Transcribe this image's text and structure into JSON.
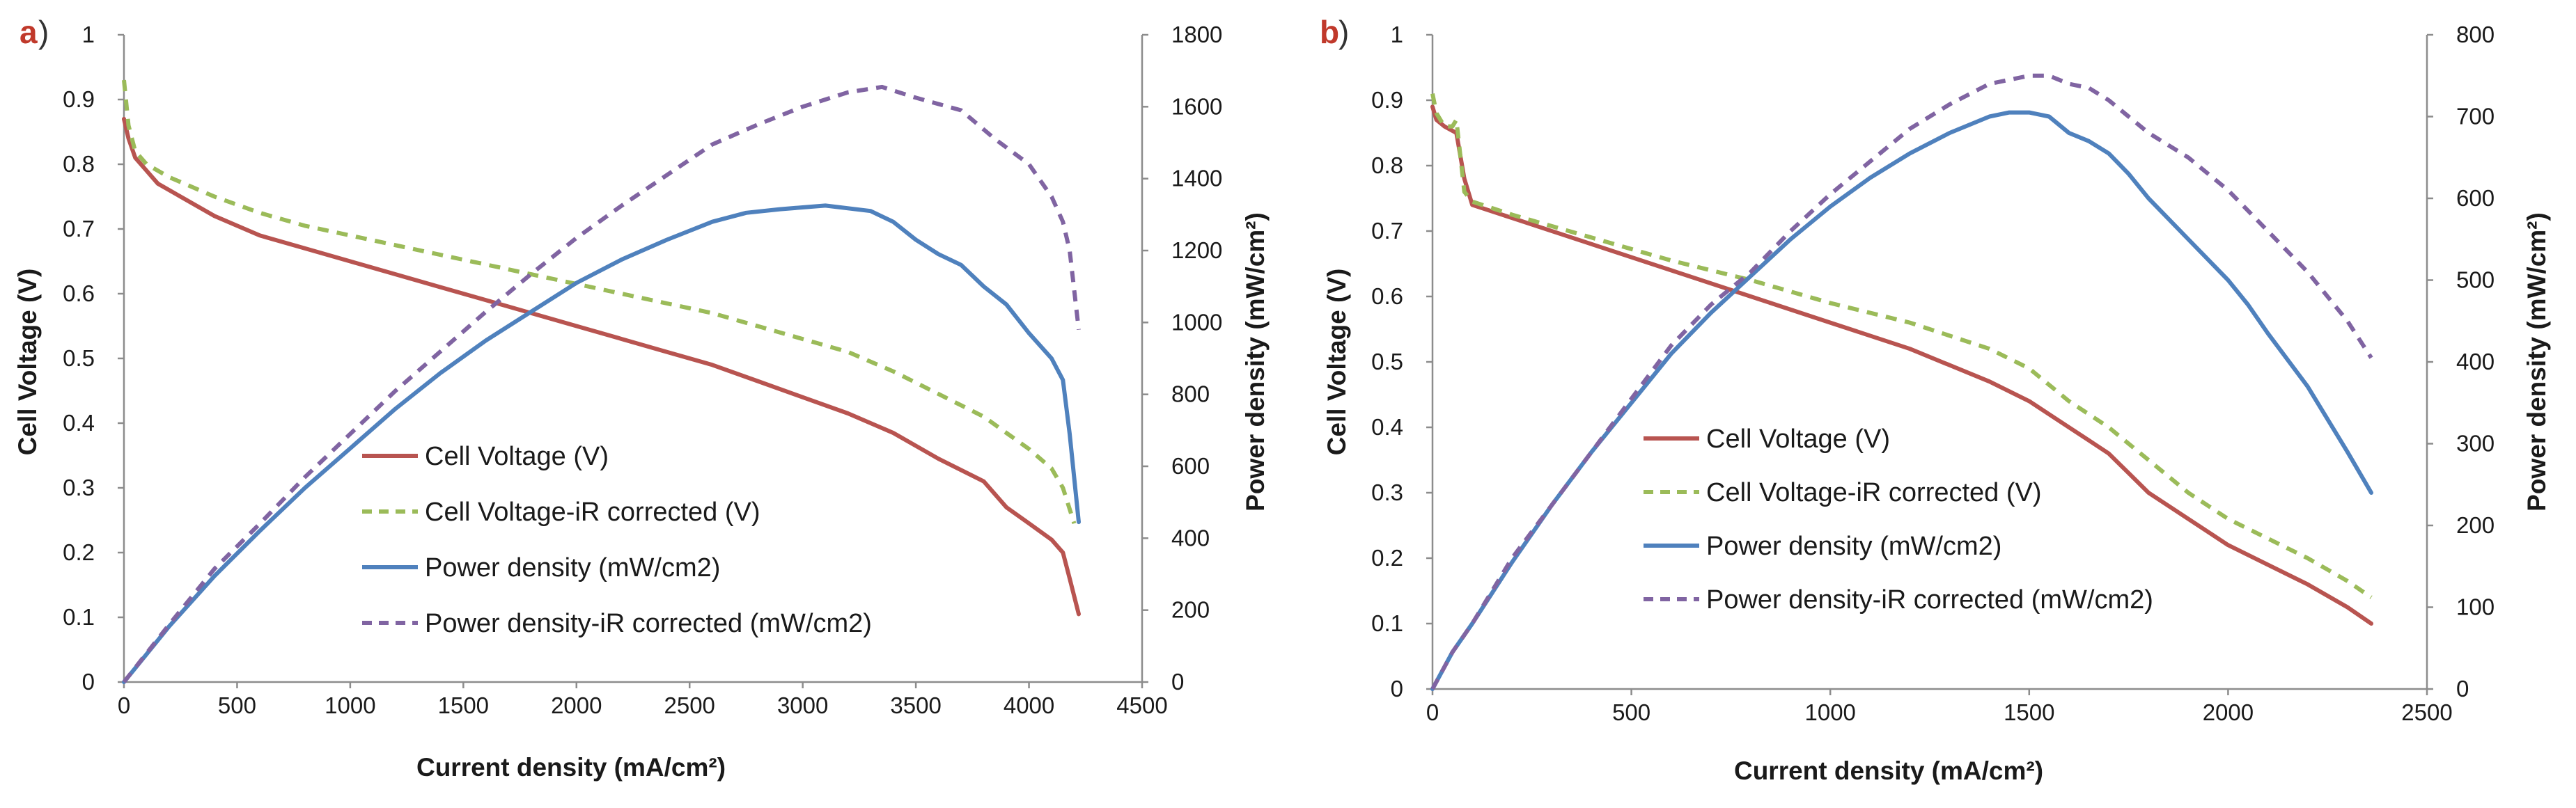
{
  "colors": {
    "cell_voltage": "#b85450",
    "cell_voltage_ir": "#9bbb59",
    "power_density": "#4f81bd",
    "power_density_ir": "#8064a2"
  },
  "chart_data": [
    {
      "type": "line",
      "panel_letter": "a",
      "panel_paren": ")",
      "xlabel": "Current density (mA/cm²)",
      "ylabel": "Cell Voltage (V)",
      "y2label": "Power density (mW/cm²)",
      "xlim": [
        0,
        4500
      ],
      "ylim": [
        0,
        1
      ],
      "y2lim": [
        0,
        1800
      ],
      "x_ticks": [
        "0",
        "500",
        "1000",
        "1500",
        "2000",
        "2500",
        "3000",
        "3500",
        "4000",
        "4500"
      ],
      "y_ticks": [
        "0",
        "0.1",
        "0.2",
        "0.3",
        "0.4",
        "0.5",
        "0.6",
        "0.7",
        "0.8",
        "0.9",
        "1"
      ],
      "y2_ticks": [
        "0",
        "200",
        "400",
        "600",
        "800",
        "1000",
        "1200",
        "1400",
        "1600",
        "1800"
      ],
      "legend": [
        "Cell Voltage (V)",
        "Cell Voltage-iR corrected (V)",
        "Power density (mW/cm2)",
        "Power density-iR corrected (mW/cm2)"
      ],
      "series": [
        {
          "name": "Cell Voltage (V)",
          "axis": "left",
          "style": "solid",
          "x": [
            0,
            20,
            50,
            100,
            150,
            250,
            400,
            600,
            800,
            1000,
            1200,
            1400,
            1600,
            1800,
            2000,
            2200,
            2400,
            2600,
            2800,
            3000,
            3200,
            3400,
            3600,
            3800,
            3900,
            4000,
            4100,
            4150,
            4180,
            4220
          ],
          "y": [
            0.87,
            0.84,
            0.81,
            0.79,
            0.77,
            0.75,
            0.72,
            0.69,
            0.67,
            0.65,
            0.63,
            0.61,
            0.59,
            0.57,
            0.55,
            0.53,
            0.51,
            0.49,
            0.465,
            0.44,
            0.415,
            0.385,
            0.345,
            0.31,
            0.27,
            0.245,
            0.22,
            0.2,
            0.16,
            0.105
          ]
        },
        {
          "name": "Cell Voltage-iR corrected (V)",
          "axis": "left",
          "style": "dashed",
          "x": [
            0,
            20,
            50,
            100,
            200,
            400,
            600,
            800,
            1000,
            1200,
            1400,
            1600,
            1800,
            2000,
            2200,
            2400,
            2600,
            2800,
            3000,
            3200,
            3400,
            3600,
            3800,
            3900,
            4000,
            4100,
            4150,
            4200
          ],
          "y": [
            0.93,
            0.86,
            0.82,
            0.8,
            0.78,
            0.75,
            0.725,
            0.705,
            0.69,
            0.675,
            0.66,
            0.645,
            0.63,
            0.615,
            0.6,
            0.585,
            0.57,
            0.55,
            0.53,
            0.51,
            0.48,
            0.445,
            0.41,
            0.385,
            0.36,
            0.33,
            0.3,
            0.245
          ]
        },
        {
          "name": "Power density (mW/cm2)",
          "axis": "right",
          "style": "solid",
          "x": [
            0,
            200,
            400,
            600,
            800,
            1000,
            1200,
            1400,
            1600,
            1800,
            2000,
            2200,
            2400,
            2600,
            2750,
            2900,
            3100,
            3300,
            3400,
            3500,
            3600,
            3700,
            3800,
            3900,
            4000,
            4100,
            4150,
            4180,
            4220
          ],
          "y": [
            0,
            155,
            295,
            420,
            540,
            650,
            760,
            860,
            950,
            1030,
            1110,
            1175,
            1230,
            1280,
            1305,
            1315,
            1325,
            1310,
            1280,
            1230,
            1190,
            1160,
            1100,
            1050,
            970,
            900,
            840,
            690,
            445
          ]
        },
        {
          "name": "Power density-iR corrected (mW/cm2)",
          "axis": "right",
          "style": "dashed",
          "x": [
            0,
            200,
            400,
            600,
            800,
            1000,
            1200,
            1400,
            1600,
            1800,
            2000,
            2200,
            2400,
            2600,
            2800,
            3000,
            3200,
            3350,
            3500,
            3700,
            3850,
            4000,
            4100,
            4150,
            4180,
            4220
          ],
          "y": [
            0,
            160,
            315,
            440,
            570,
            690,
            810,
            920,
            1030,
            1135,
            1235,
            1325,
            1410,
            1495,
            1550,
            1600,
            1640,
            1655,
            1625,
            1590,
            1510,
            1440,
            1350,
            1280,
            1200,
            980
          ]
        }
      ]
    },
    {
      "type": "line",
      "panel_letter": "b",
      "panel_paren": ")",
      "xlabel": "Current density (mA/cm²)",
      "ylabel": "Cell Voltage (V)",
      "y2label": "Power density (mW/cm²)",
      "xlim": [
        0,
        2500
      ],
      "ylim": [
        0,
        1
      ],
      "y2lim": [
        0,
        800
      ],
      "x_ticks": [
        "0",
        "500",
        "1000",
        "1500",
        "2000",
        "2500"
      ],
      "y_ticks": [
        "0",
        "0.1",
        "0.2",
        "0.3",
        "0.4",
        "0.5",
        "0.6",
        "0.7",
        "0.8",
        "0.9",
        "1"
      ],
      "y2_ticks": [
        "0",
        "100",
        "200",
        "300",
        "400",
        "500",
        "600",
        "700",
        "800"
      ],
      "legend": [
        "Cell Voltage (V)",
        "Cell Voltage-iR corrected (V)",
        "Power density (mW/cm2)",
        "Power density-iR corrected (mW/cm2)"
      ],
      "series": [
        {
          "name": "Cell Voltage (V)",
          "axis": "left",
          "style": "solid",
          "x": [
            0,
            10,
            30,
            60,
            80,
            100,
            200,
            400,
            600,
            800,
            1000,
            1200,
            1400,
            1500,
            1550,
            1600,
            1650,
            1700,
            1750,
            1800,
            1900,
            2000,
            2100,
            2200,
            2300,
            2360
          ],
          "y": [
            0.89,
            0.87,
            0.86,
            0.85,
            0.78,
            0.74,
            0.72,
            0.68,
            0.64,
            0.6,
            0.56,
            0.52,
            0.47,
            0.44,
            0.42,
            0.4,
            0.38,
            0.36,
            0.33,
            0.3,
            0.26,
            0.22,
            0.19,
            0.16,
            0.125,
            0.1
          ]
        },
        {
          "name": "Cell Voltage-iR corrected (V)",
          "axis": "left",
          "style": "dashed",
          "x": [
            0,
            10,
            30,
            50,
            60,
            80,
            100,
            200,
            400,
            600,
            800,
            1000,
            1200,
            1400,
            1500,
            1600,
            1700,
            1800,
            1900,
            2000,
            2100,
            2200,
            2300,
            2360
          ],
          "y": [
            0.91,
            0.88,
            0.86,
            0.86,
            0.87,
            0.76,
            0.745,
            0.725,
            0.69,
            0.655,
            0.625,
            0.59,
            0.56,
            0.52,
            0.49,
            0.44,
            0.4,
            0.35,
            0.3,
            0.26,
            0.23,
            0.2,
            0.165,
            0.14
          ]
        },
        {
          "name": "Power density (mW/cm2)",
          "axis": "right",
          "style": "solid",
          "x": [
            0,
            50,
            100,
            200,
            300,
            400,
            500,
            600,
            700,
            800,
            900,
            1000,
            1100,
            1200,
            1300,
            1400,
            1450,
            1500,
            1550,
            1600,
            1650,
            1700,
            1750,
            1800,
            1900,
            2000,
            2050,
            2100,
            2200,
            2300,
            2360
          ],
          "y": [
            0,
            45,
            80,
            155,
            225,
            290,
            350,
            410,
            460,
            505,
            550,
            590,
            625,
            655,
            680,
            700,
            705,
            705,
            700,
            680,
            670,
            655,
            630,
            600,
            550,
            500,
            470,
            435,
            370,
            290,
            240
          ]
        },
        {
          "name": "Power density-iR corrected (mW/cm2)",
          "axis": "right",
          "style": "dashed",
          "x": [
            0,
            50,
            100,
            200,
            300,
            400,
            500,
            600,
            700,
            800,
            900,
            1000,
            1100,
            1200,
            1300,
            1400,
            1500,
            1550,
            1600,
            1650,
            1700,
            1750,
            1800,
            1900,
            2000,
            2100,
            2200,
            2300,
            2360
          ],
          "y": [
            0,
            45,
            80,
            160,
            225,
            290,
            355,
            420,
            470,
            510,
            560,
            605,
            645,
            685,
            715,
            740,
            750,
            750,
            740,
            735,
            720,
            700,
            680,
            650,
            610,
            560,
            510,
            450,
            405
          ]
        }
      ]
    }
  ]
}
